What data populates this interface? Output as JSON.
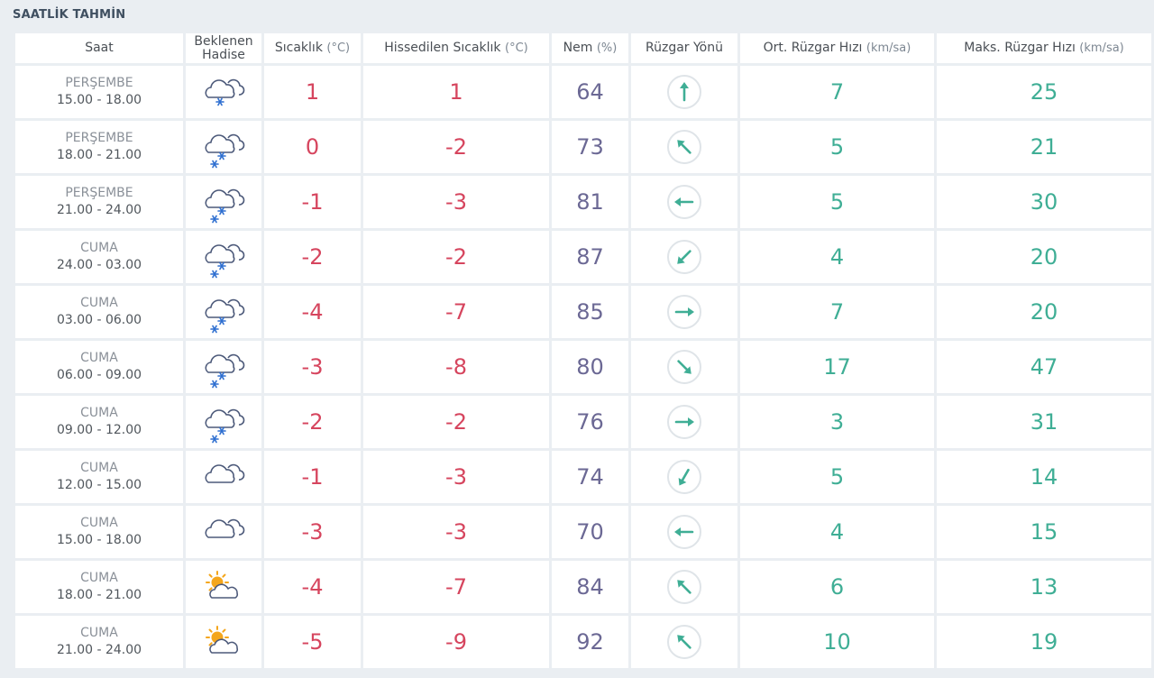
{
  "title": "SAATLİK TAHMİN",
  "headers": {
    "saat": "Saat",
    "hadise_1": "Beklenen",
    "hadise_2": "Hadise",
    "temp": "Sıcaklık",
    "temp_unit": "(°C)",
    "feel": "Hissedilen Sıcaklık",
    "feel_unit": "(°C)",
    "hum": "Nem",
    "hum_unit": "(%)",
    "dir": "Rüzgar Yönü",
    "avg": "Ort. Rüzgar Hızı",
    "avg_unit": "(km/sa)",
    "max": "Maks. Rüzgar Hızı",
    "max_unit": "(km/sa)"
  },
  "colors": {
    "temperature": "#d6455e",
    "humidity": "#6b6894",
    "wind": "#3fae95",
    "icon_stroke": "#4d5a7a",
    "snow": "#2e6fd0",
    "sun": "#f4a61c"
  },
  "rows": [
    {
      "day": "PERŞEMBE",
      "hours": "15.00 - 18.00",
      "icon": "cloudy-light-snow-icon",
      "temp": "1",
      "feel": "1",
      "hum": "64",
      "dir": "north",
      "dir_deg": 0,
      "avg": "7",
      "max": "25"
    },
    {
      "day": "PERŞEMBE",
      "hours": "18.00 - 21.00",
      "icon": "cloudy-snow-icon",
      "temp": "0",
      "feel": "-2",
      "hum": "73",
      "dir": "northwest",
      "dir_deg": 315,
      "avg": "5",
      "max": "21"
    },
    {
      "day": "PERŞEMBE",
      "hours": "21.00 - 24.00",
      "icon": "cloudy-snow-icon",
      "temp": "-1",
      "feel": "-3",
      "hum": "81",
      "dir": "west",
      "dir_deg": 270,
      "avg": "5",
      "max": "30"
    },
    {
      "day": "CUMA",
      "hours": "24.00 - 03.00",
      "icon": "cloudy-snow-icon",
      "temp": "-2",
      "feel": "-2",
      "hum": "87",
      "dir": "southwest",
      "dir_deg": 225,
      "avg": "4",
      "max": "20"
    },
    {
      "day": "CUMA",
      "hours": "03.00 - 06.00",
      "icon": "cloudy-snow-icon",
      "temp": "-4",
      "feel": "-7",
      "hum": "85",
      "dir": "east",
      "dir_deg": 90,
      "avg": "7",
      "max": "20"
    },
    {
      "day": "CUMA",
      "hours": "06.00 - 09.00",
      "icon": "cloudy-snow-icon",
      "temp": "-3",
      "feel": "-8",
      "hum": "80",
      "dir": "southeast",
      "dir_deg": 135,
      "avg": "17",
      "max": "47"
    },
    {
      "day": "CUMA",
      "hours": "09.00 - 12.00",
      "icon": "cloudy-snow-icon",
      "temp": "-2",
      "feel": "-2",
      "hum": "76",
      "dir": "east",
      "dir_deg": 90,
      "avg": "3",
      "max": "31"
    },
    {
      "day": "CUMA",
      "hours": "12.00 - 15.00",
      "icon": "cloudy-icon",
      "temp": "-1",
      "feel": "-3",
      "hum": "74",
      "dir": "southwest",
      "dir_deg": 210,
      "avg": "5",
      "max": "14"
    },
    {
      "day": "CUMA",
      "hours": "15.00 - 18.00",
      "icon": "cloudy-icon",
      "temp": "-3",
      "feel": "-3",
      "hum": "70",
      "dir": "west",
      "dir_deg": 270,
      "avg": "4",
      "max": "15"
    },
    {
      "day": "CUMA",
      "hours": "18.00 - 21.00",
      "icon": "partly-cloudy-icon",
      "temp": "-4",
      "feel": "-7",
      "hum": "84",
      "dir": "northwest",
      "dir_deg": 315,
      "avg": "6",
      "max": "13"
    },
    {
      "day": "CUMA",
      "hours": "21.00 - 24.00",
      "icon": "partly-cloudy-icon",
      "temp": "-5",
      "feel": "-9",
      "hum": "92",
      "dir": "northwest",
      "dir_deg": 315,
      "avg": "10",
      "max": "19"
    }
  ]
}
